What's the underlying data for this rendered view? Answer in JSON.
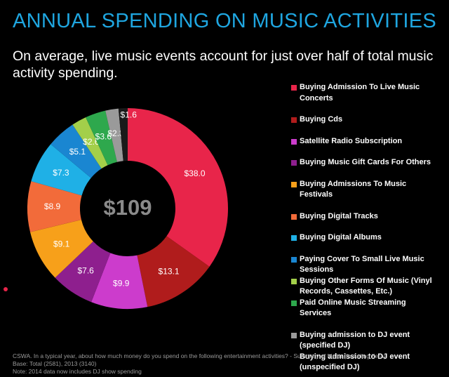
{
  "chart_data": {
    "type": "donut",
    "title": "ANNUAL SPENDING ON MUSIC ACTIVITIES",
    "subtitle": "On average, live music events account for just over half of total music activity spending.",
    "center_label": "$109",
    "categories": [
      "Buying Admission To Live Music Concerts",
      "Buying Cds",
      "Satellite Radio Subscription",
      "Buying Music Gift Cards For Others",
      "Buying Admissions To Music Festivals",
      "Buying Digital Tracks",
      "Buying Digital Albums",
      "Paying Cover To Small Live Music Sessions",
      "Buying Other Forms Of Music (Vinyl Records, Cassettes, Etc.)",
      "Paid Online Music Streaming Services",
      "Buying admission to DJ event (specified DJ)",
      "Buying admission to DJ event (unspecified DJ)"
    ],
    "values": [
      38.0,
      13.1,
      9.9,
      7.6,
      9.1,
      8.9,
      7.3,
      5.1,
      2.6,
      3.6,
      2.3,
      1.6
    ],
    "value_labels": [
      "$38.0",
      "$13.1",
      "$9.9",
      "$7.6",
      "$9.1",
      "$8.9",
      "$7.3",
      "$5.1",
      "$2.6",
      "$3.6",
      "$2.3",
      "$1.6"
    ],
    "colors": [
      "#e8254a",
      "#b01c1c",
      "#cc3ccc",
      "#8e1f8e",
      "#f7a01a",
      "#f26b3a",
      "#1fb0e6",
      "#1a86d1",
      "#a3cf4a",
      "#2ea84d",
      "#9a9a9a",
      "#1a1a1a"
    ],
    "notes": [
      "CSWA. In a typical year, about how much money do you spend on the following entertainment activities? - Summary of Mean (Including Zero)",
      "Base: Total (2581), 2013 (3140)",
      "Note: 2014 data now includes DJ show spending"
    ]
  }
}
